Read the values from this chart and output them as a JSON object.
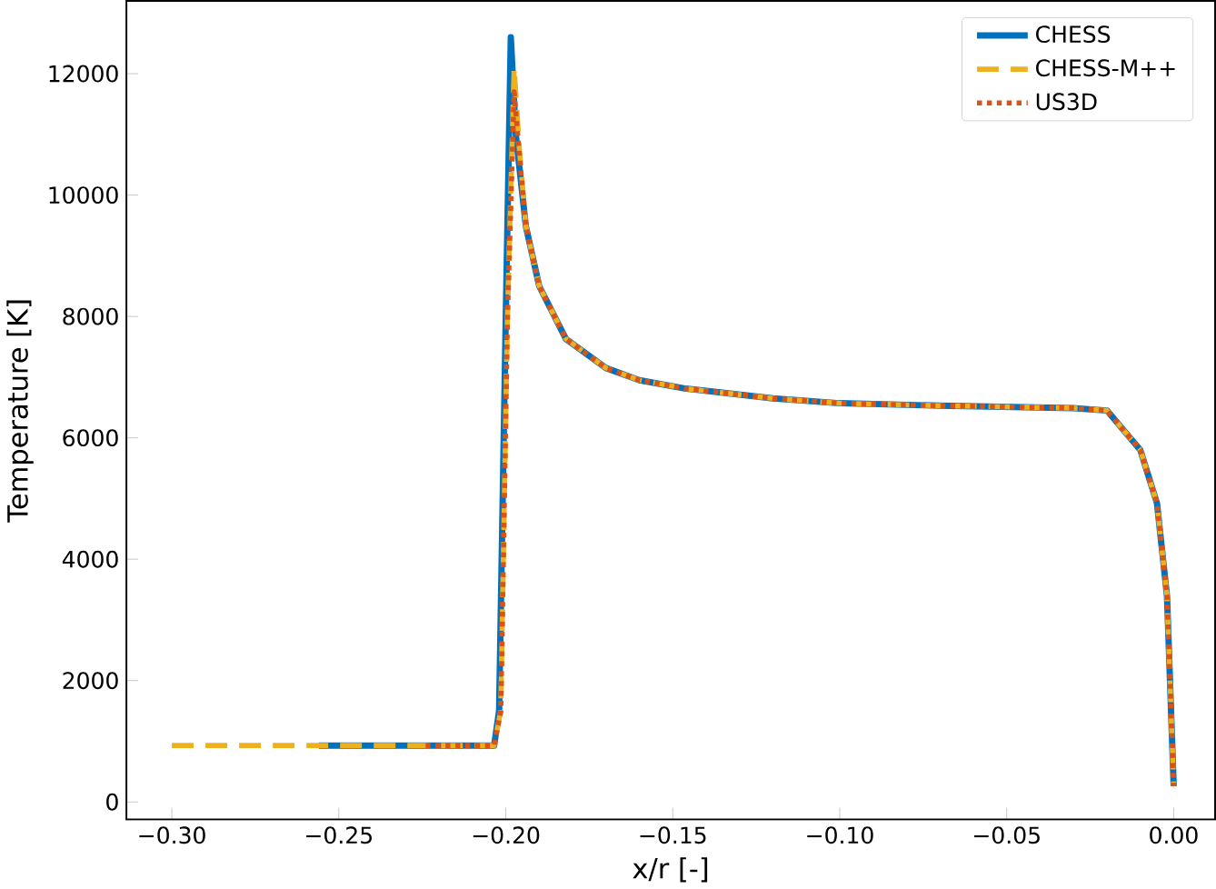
{
  "chart_data": {
    "type": "line",
    "xlabel": "x/r [-]",
    "ylabel": "Temperature [K]",
    "xlim": [
      -0.3136,
      0.0124
    ],
    "ylim": [
      -290,
      13200
    ],
    "xticks": [
      {
        "value": -0.3,
        "label": "−0.30"
      },
      {
        "value": -0.25,
        "label": "−0.25"
      },
      {
        "value": -0.2,
        "label": "−0.20"
      },
      {
        "value": -0.15,
        "label": "−0.15"
      },
      {
        "value": -0.1,
        "label": "−0.10"
      },
      {
        "value": -0.05,
        "label": "−0.05"
      },
      {
        "value": 0,
        "label": "0.00"
      }
    ],
    "yticks": [
      0,
      2000,
      4000,
      6000,
      8000,
      10000,
      12000
    ],
    "grid": false,
    "legend": "top right",
    "series": [
      {
        "name": "CHESS",
        "color": "#0072bd",
        "line_style": "solid",
        "x": [
          -0.256,
          -0.22,
          -0.2035,
          -0.202,
          -0.2,
          -0.1985,
          -0.197,
          -0.194,
          -0.19,
          -0.182,
          -0.17,
          -0.16,
          -0.146,
          -0.12,
          -0.1,
          -0.07,
          -0.05,
          -0.03,
          -0.02,
          -0.01,
          -0.005,
          -0.002,
          0
        ],
        "values": [
          930,
          930,
          930,
          1500,
          8000,
          12600,
          11000,
          9490,
          8500,
          7630,
          7150,
          6950,
          6810,
          6650,
          6570,
          6530,
          6510,
          6490,
          6450,
          5800,
          4920,
          3390,
          260
        ]
      },
      {
        "name": "CHESS-M++",
        "color": "#edb120",
        "line_style": "dashed",
        "x": [
          -0.3,
          -0.22,
          -0.2035,
          -0.2015,
          -0.1995,
          -0.1975,
          -0.196,
          -0.194,
          -0.19,
          -0.182,
          -0.17,
          -0.16,
          -0.146,
          -0.12,
          -0.1,
          -0.07,
          -0.05,
          -0.03,
          -0.02,
          -0.01,
          -0.005,
          -0.002,
          0
        ],
        "values": [
          930,
          930,
          930,
          1500,
          8000,
          12100,
          10800,
          9490,
          8500,
          7630,
          7150,
          6950,
          6810,
          6650,
          6570,
          6530,
          6510,
          6490,
          6450,
          5800,
          4920,
          3390,
          260
        ]
      },
      {
        "name": "US3D",
        "color": "#d95319",
        "line_style": "dotted",
        "x": [
          -0.224,
          -0.205,
          -0.2035,
          -0.2015,
          -0.1995,
          -0.1975,
          -0.196,
          -0.194,
          -0.19,
          -0.182,
          -0.17,
          -0.16,
          -0.146,
          -0.12,
          -0.1,
          -0.07,
          -0.05,
          -0.03,
          -0.02,
          -0.01,
          -0.005,
          -0.002,
          0
        ],
        "values": [
          930,
          930,
          930,
          1500,
          8000,
          11700,
          10700,
          9490,
          8500,
          7630,
          7150,
          6950,
          6810,
          6650,
          6570,
          6530,
          6510,
          6490,
          6450,
          5800,
          4920,
          3390,
          260
        ]
      }
    ]
  }
}
